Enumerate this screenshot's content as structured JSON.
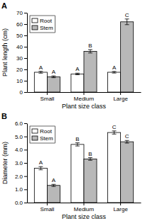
{
  "chart_data": [
    {
      "type": "bar",
      "title": "A",
      "xlabel": "Plant size class",
      "ylabel": "Plant length (cm)",
      "categories": [
        "Small",
        "Medium",
        "Large"
      ],
      "series": [
        {
          "name": "Root",
          "color": "#ffffff",
          "values": [
            17.5,
            16.0,
            17.5
          ],
          "errors": [
            0.8,
            0.7,
            0.7
          ],
          "annotations": [
            "A",
            "A",
            "A"
          ]
        },
        {
          "name": "Stem",
          "color": "#b8b8b8",
          "values": [
            13.5,
            36.0,
            62.0
          ],
          "errors": [
            0.8,
            1.5,
            2.5
          ],
          "annotations": [
            "A",
            "B",
            "C"
          ]
        }
      ],
      "ylim": [
        0,
        70
      ],
      "yticks": [
        0,
        10,
        20,
        30,
        40,
        50,
        60,
        70
      ],
      "legend": "upper left",
      "grid": false
    },
    {
      "type": "bar",
      "title": "B",
      "xlabel": "Plant size class",
      "ylabel": "Diameter (mm)",
      "categories": [
        "Small",
        "Medium",
        "Large"
      ],
      "series": [
        {
          "name": "Root",
          "color": "#ffffff",
          "values": [
            2.6,
            4.4,
            5.3
          ],
          "errors": [
            0.12,
            0.12,
            0.12
          ],
          "annotations": [
            "A",
            "B",
            "C"
          ]
        },
        {
          "name": "Stem",
          "color": "#b8b8b8",
          "values": [
            1.3,
            3.3,
            4.6
          ],
          "errors": [
            0.08,
            0.1,
            0.1
          ],
          "annotations": [
            "A",
            "B",
            "C"
          ]
        }
      ],
      "ylim": [
        0.0,
        6.0
      ],
      "yticks": [
        {
          "value": 0.0,
          "label": "0.0"
        },
        {
          "value": 1.0,
          "label": "1.0"
        },
        {
          "value": 2.0,
          "label": "2.0"
        },
        {
          "value": 3.0,
          "label": "3.0"
        },
        {
          "value": 4.0,
          "label": "4.0"
        },
        {
          "value": 5.0,
          "label": "5.0"
        },
        {
          "value": 6.0,
          "label": "6.0"
        }
      ],
      "legend": "upper left",
      "grid": false
    }
  ]
}
